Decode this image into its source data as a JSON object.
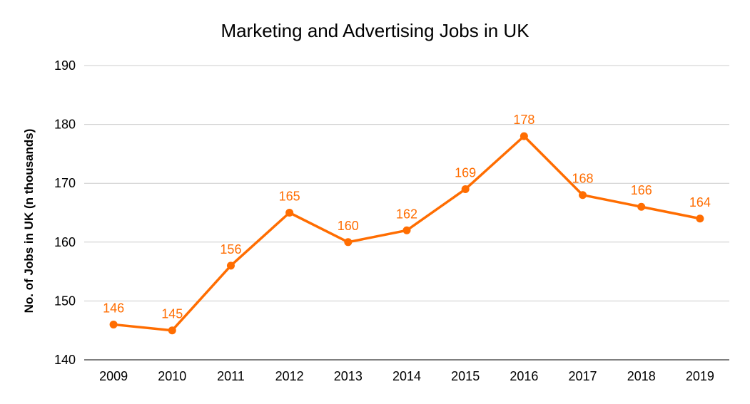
{
  "chart_data": {
    "type": "line",
    "title": "Marketing and Advertising Jobs in UK",
    "xlabel": "",
    "ylabel": "No. of Jobs in UK (n thousands)",
    "categories": [
      "2009",
      "2010",
      "2011",
      "2012",
      "2013",
      "2014",
      "2015",
      "2016",
      "2017",
      "2018",
      "2019"
    ],
    "series": [
      {
        "values": [
          146,
          145,
          156,
          165,
          160,
          162,
          169,
          178,
          168,
          166,
          164
        ],
        "color": "#ff6d01"
      }
    ],
    "ylim": [
      140,
      190
    ],
    "yticks": [
      140,
      150,
      160,
      170,
      180,
      190
    ],
    "grid": true,
    "legend": "none",
    "data_labels": true
  }
}
